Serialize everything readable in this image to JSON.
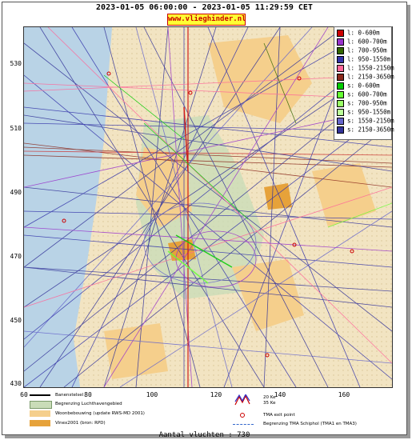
{
  "header": {
    "title": "2023-01-05 06:00:00 - 2023-01-05 11:29:59 CET",
    "site": "www.vlieghinder.nl"
  },
  "axes": {
    "y_ticks": [
      "530",
      "510",
      "490",
      "470",
      "450",
      "430"
    ],
    "x_ticks": [
      "60",
      "80",
      "100",
      "120",
      "140",
      "160"
    ]
  },
  "legend": {
    "items": [
      {
        "label": "l: 0-600m",
        "color": "#cc0000"
      },
      {
        "label": "l: 600-700m",
        "color": "#9933cc"
      },
      {
        "label": "l: 700-950m",
        "color": "#336600"
      },
      {
        "label": "l: 950-1550m",
        "color": "#3333aa"
      },
      {
        "label": "l: 1550-2150m",
        "color": "#ff6699"
      },
      {
        "label": "l: 2150-3650m",
        "color": "#8b2a1e"
      },
      {
        "label": "s: 0-600m",
        "color": "#00cc00"
      },
      {
        "label": "s: 600-700m",
        "color": "#66ff33"
      },
      {
        "label": "s: 700-950m",
        "color": "#99ff66"
      },
      {
        "label": "s: 950-1550m",
        "color": "#bbff99"
      },
      {
        "label": "s: 1550-2150m",
        "color": "#6666cc"
      },
      {
        "label": "s: 2150-3650m",
        "color": "#333399"
      }
    ]
  },
  "bottom_key": {
    "runway": "Banenstelsel",
    "airport_limit": "Begrenzing Luchthavengebied",
    "housing": "Woonbebouwing (update RWS-MD 2001)",
    "vinex": "Vinex2001 (bron: RPD)",
    "ke": "20 Ke\n35 Ke",
    "ke20": "20 Ke",
    "ke35": "35 Ke",
    "tma_exit": "TMA exit point",
    "tma_limit": "Begrenzing TMA Schiphol  (TMA1 en TMA3)"
  },
  "footer": {
    "count_text": "Aantal vluchten : 730"
  }
}
